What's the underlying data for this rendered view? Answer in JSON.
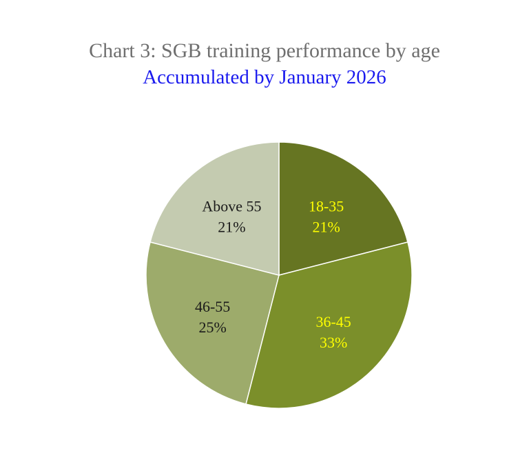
{
  "chart_data": {
    "type": "pie",
    "title": "Chart 3: SGB training performance by age",
    "subtitle": "Accumulated by January 2026",
    "start_angle_deg": 0,
    "direction": "clockwise",
    "slices": [
      {
        "label": "18-35",
        "value": 21,
        "value_label": "21%",
        "color": "#667522",
        "text_color": "#ffff00"
      },
      {
        "label": "36-45",
        "value": 33,
        "value_label": "33%",
        "color": "#7b8f2a",
        "text_color": "#ffff00"
      },
      {
        "label": "46-55",
        "value": 25,
        "value_label": "25%",
        "color": "#9dab6b",
        "text_color": "#1a1a1a"
      },
      {
        "label": "Above 55",
        "value": 21,
        "value_label": "21%",
        "color": "#c4cbb0",
        "text_color": "#1a1a1a"
      }
    ]
  }
}
